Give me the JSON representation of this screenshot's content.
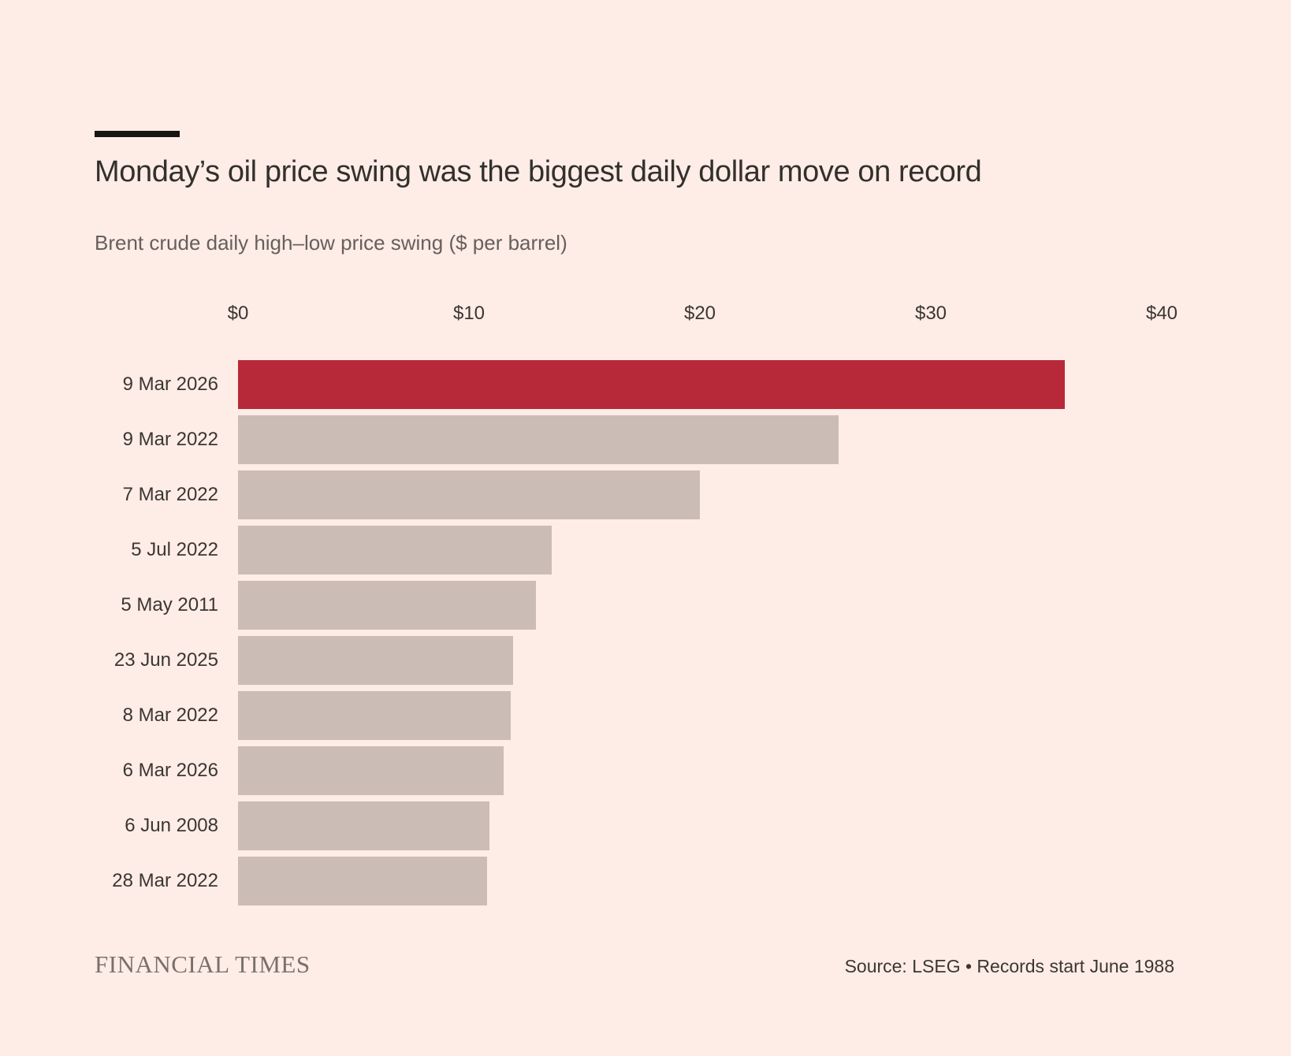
{
  "chart_data": {
    "type": "bar",
    "orientation": "horizontal",
    "title": "Monday’s oil price swing was the biggest daily dollar move on record",
    "subtitle": "Brent crude daily high–low price swing ($ per barrel)",
    "categories": [
      "9 Mar 2026",
      "9 Mar 2022",
      "7 Mar 2022",
      "5 Jul 2022",
      "5 May 2011",
      "23 Jun 2025",
      "8 Mar 2022",
      "6 Mar 2026",
      "6 Jun 2008",
      "28 Mar 2022"
    ],
    "values": [
      35.8,
      26.0,
      20.0,
      13.6,
      12.9,
      11.9,
      11.8,
      11.5,
      10.9,
      10.8
    ],
    "xlabel": "",
    "ylabel": "",
    "xlim": [
      0,
      40
    ],
    "x_ticks": [
      {
        "value": 0,
        "label": "$0"
      },
      {
        "value": 10,
        "label": "$10"
      },
      {
        "value": 20,
        "label": "$20"
      },
      {
        "value": 30,
        "label": "$30"
      },
      {
        "value": 40,
        "label": "$40"
      }
    ],
    "grid": false,
    "legend": false,
    "highlight_index": 0,
    "colors": {
      "highlight": "#B72938",
      "default": "#CBBCB6",
      "background": "#FEECE7"
    }
  },
  "footer": {
    "brand": "FINANCIAL TIMES",
    "source": "Source: LSEG • Records start June 1988"
  }
}
